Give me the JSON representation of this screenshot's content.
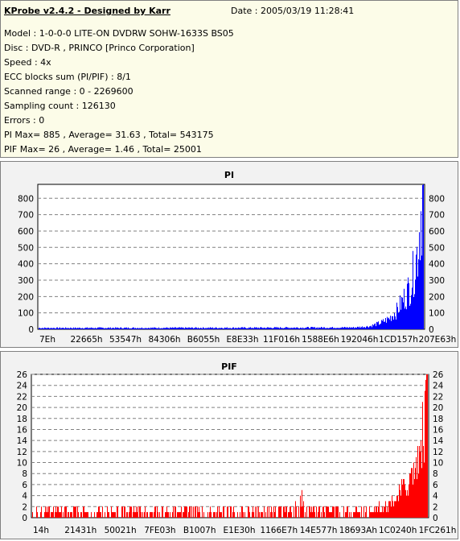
{
  "info": {
    "title": "KProbe v2.4.2 - Designed by Karr",
    "date": "Date : 2005/03/19 11:28:41",
    "lines": [
      "Model : 1-0-0-0 LITE-ON DVDRW SOHW-1633S BS05",
      "Disc : DVD-R , PRINCO [Princo Corporation]",
      "Speed : 4x",
      "ECC blocks sum (PI/PIF) : 8/1",
      "Scanned range : 0 - 2269600",
      "Sampling count : 126130",
      "Errors : 0",
      "PI Max= 885 , Average= 31.63 , Total= 543175",
      "PIF Max= 26 , Average= 1.46 , Total= 25001"
    ]
  },
  "chart_data": [
    {
      "type": "bar",
      "title": "PI",
      "color": "#0000ff",
      "ylim": [
        0,
        885
      ],
      "yticks": [
        0,
        100,
        200,
        300,
        400,
        500,
        600,
        700,
        800
      ],
      "grid": true,
      "xtick_labels": [
        "7Eh",
        "22665h",
        "53547h",
        "84306h",
        "B6055h",
        "E8E33h",
        "11F016h",
        "1588E6h",
        "192046h",
        "1CD157h",
        "207E63h"
      ],
      "profile": [
        [
          0,
          8
        ],
        [
          0.5,
          9
        ],
        [
          0.82,
          11
        ],
        [
          0.86,
          18
        ],
        [
          0.89,
          40
        ],
        [
          0.91,
          65
        ],
        [
          0.93,
          110
        ],
        [
          0.95,
          190
        ],
        [
          0.965,
          260
        ],
        [
          0.975,
          350
        ],
        [
          0.985,
          480
        ],
        [
          0.99,
          620
        ],
        [
          0.995,
          760
        ],
        [
          1.0,
          885
        ]
      ]
    },
    {
      "type": "bar",
      "title": "PIF",
      "color": "#ff0000",
      "ylim": [
        0,
        26
      ],
      "yticks": [
        0,
        2,
        4,
        6,
        8,
        10,
        12,
        14,
        16,
        18,
        20,
        22,
        24,
        26
      ],
      "grid": true,
      "xtick_labels": [
        "14h",
        "21431h",
        "50021h",
        "7FE03h",
        "B1007h",
        "E1E30h",
        "1166E7h",
        "14E577h",
        "18693Ah",
        "1C0240h",
        "1FC261h"
      ],
      "profile": [
        [
          0,
          1.5
        ],
        [
          0.66,
          1.5
        ],
        [
          0.68,
          3.5
        ],
        [
          0.7,
          1.5
        ],
        [
          0.88,
          1.8
        ],
        [
          0.91,
          3
        ],
        [
          0.93,
          4.5
        ],
        [
          0.95,
          6
        ],
        [
          0.97,
          9
        ],
        [
          0.985,
          13
        ],
        [
          0.995,
          20
        ],
        [
          1.0,
          26
        ]
      ]
    }
  ]
}
